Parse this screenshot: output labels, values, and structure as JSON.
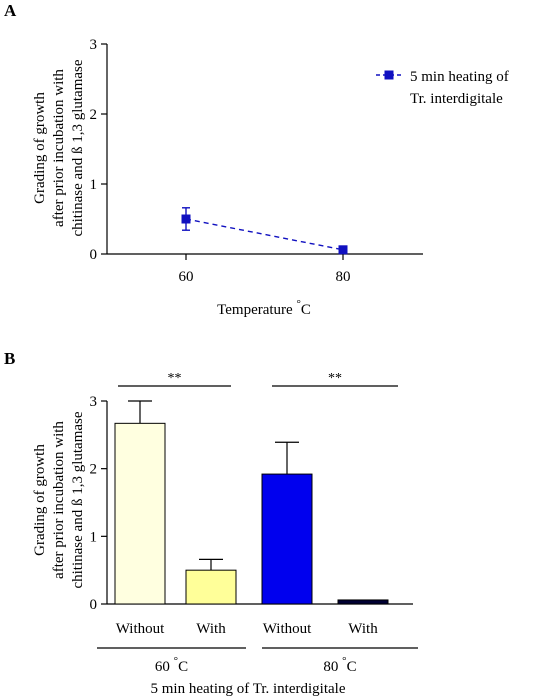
{
  "chart_data": [
    {
      "type": "line",
      "panel": "A",
      "title": "",
      "ylabel": [
        "Grading of growth",
        "after prior incubation with",
        "chitinase and ß 1,3 glutamase"
      ],
      "xlabel": "Temperature",
      "xlabel_unit": "°C",
      "x": [
        60,
        80
      ],
      "x_ticks": [
        "60",
        "80"
      ],
      "ylim": [
        0,
        3
      ],
      "y_ticks": [
        "0",
        "1",
        "2",
        "3"
      ],
      "series": [
        {
          "name_line1": "5 min heating of",
          "name_line2": "Tr. interdigitale",
          "values": [
            0.5,
            0.06
          ],
          "errors": [
            0.16,
            0.02
          ],
          "color": "#1010c0",
          "line_style": "dashed",
          "marker": "square"
        }
      ],
      "legend_position": "right",
      "grid": false
    },
    {
      "type": "bar",
      "panel": "B",
      "title": "",
      "ylabel": [
        "Grading of growth",
        "after prior incubation with",
        "chitinase and ß 1,3 glutamase"
      ],
      "categories": [
        "Without",
        "With",
        "Without",
        "With"
      ],
      "values": [
        2.67,
        0.5,
        1.92,
        0.06
      ],
      "errors": [
        0.33,
        0.16,
        0.47,
        0.02
      ],
      "colors": [
        "#ffffe0",
        "#ffff99",
        "#0000ee",
        "#000033"
      ],
      "ylim": [
        0,
        3
      ],
      "y_ticks": [
        "0",
        "1",
        "2",
        "3"
      ],
      "groups": [
        {
          "label": "60 °C",
          "categories": [
            0,
            1
          ]
        },
        {
          "label": "80 °C",
          "categories": [
            2,
            3
          ]
        }
      ],
      "group_axis_label": "5 min heating of Tr. interdigitale",
      "significance": [
        {
          "pair": [
            0,
            1
          ],
          "label": "**"
        },
        {
          "pair": [
            2,
            3
          ],
          "label": "**"
        }
      ],
      "grid": false
    }
  ]
}
